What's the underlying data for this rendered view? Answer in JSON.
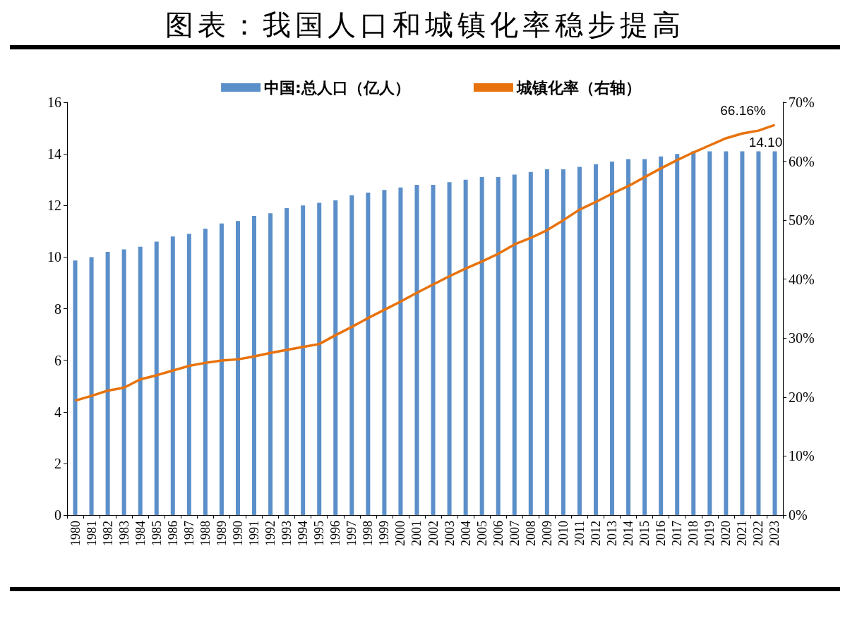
{
  "chart_data": {
    "type": "bar",
    "title": "图表：我国人口和城镇化率稳步提高",
    "categories": [
      "1980",
      "1981",
      "1982",
      "1983",
      "1984",
      "1985",
      "1986",
      "1987",
      "1988",
      "1989",
      "1990",
      "1991",
      "1992",
      "1993",
      "1994",
      "1995",
      "1996",
      "1997",
      "1998",
      "1999",
      "2000",
      "2001",
      "2002",
      "2003",
      "2004",
      "2005",
      "2006",
      "2007",
      "2008",
      "2009",
      "2010",
      "2011",
      "2012",
      "2013",
      "2014",
      "2015",
      "2016",
      "2017",
      "2018",
      "2019",
      "2020",
      "2021",
      "2022",
      "2023"
    ],
    "series": [
      {
        "name": "中国:总人口（亿人）",
        "color": "#5b8fc9",
        "values": [
          9.87,
          10.0,
          10.2,
          10.3,
          10.4,
          10.6,
          10.8,
          10.9,
          11.1,
          11.3,
          11.4,
          11.6,
          11.7,
          11.9,
          12.0,
          12.1,
          12.2,
          12.4,
          12.5,
          12.6,
          12.7,
          12.8,
          12.8,
          12.9,
          13.0,
          13.1,
          13.1,
          13.2,
          13.3,
          13.4,
          13.4,
          13.5,
          13.6,
          13.7,
          13.8,
          13.8,
          13.9,
          14.0,
          14.1,
          14.1,
          14.1,
          14.1,
          14.1,
          14.1
        ],
        "value_labels": [
          null,
          null,
          null,
          null,
          null,
          null,
          null,
          null,
          null,
          null,
          null,
          null,
          null,
          null,
          null,
          null,
          null,
          null,
          null,
          null,
          null,
          null,
          null,
          null,
          null,
          null,
          null,
          null,
          null,
          null,
          null,
          null,
          null,
          null,
          null,
          null,
          null,
          null,
          null,
          null,
          null,
          null,
          null,
          "14.10"
        ]
      },
      {
        "name": "城镇化率（右轴）",
        "type": "line",
        "axis": "y2",
        "color": "#e8720c",
        "values": [
          19.4,
          20.2,
          21.1,
          21.6,
          23.0,
          23.7,
          24.5,
          25.3,
          25.8,
          26.2,
          26.4,
          26.9,
          27.5,
          28.0,
          28.5,
          29.0,
          30.5,
          31.9,
          33.4,
          34.8,
          36.2,
          37.7,
          39.1,
          40.5,
          41.8,
          43.0,
          44.3,
          45.9,
          47.0,
          48.3,
          50.0,
          51.8,
          53.1,
          54.5,
          55.8,
          57.3,
          58.8,
          60.2,
          61.5,
          62.7,
          63.9,
          64.7,
          65.2,
          66.16
        ],
        "value_labels": [
          null,
          null,
          null,
          null,
          null,
          null,
          null,
          null,
          null,
          null,
          null,
          null,
          null,
          null,
          null,
          null,
          null,
          null,
          null,
          null,
          null,
          null,
          null,
          null,
          null,
          null,
          null,
          null,
          null,
          null,
          null,
          null,
          null,
          null,
          null,
          null,
          null,
          null,
          null,
          null,
          null,
          null,
          null,
          "66.16%"
        ]
      }
    ],
    "ylim": [
      0,
      16
    ],
    "yticks": [
      0,
      2,
      4,
      6,
      8,
      10,
      12,
      14,
      16
    ],
    "y2lim": [
      0,
      70
    ],
    "y2ticks": [
      {
        "value": 0,
        "label": "0%"
      },
      {
        "value": 10,
        "label": "10%"
      },
      {
        "value": 20,
        "label": "20%"
      },
      {
        "value": 30,
        "label": "30%"
      },
      {
        "value": 40,
        "label": "40%"
      },
      {
        "value": 50,
        "label": "50%"
      },
      {
        "value": 60,
        "label": "60%"
      },
      {
        "value": 70,
        "label": "70%"
      }
    ],
    "grid": false,
    "legend": "top",
    "marker": "none",
    "line_style": "solid"
  }
}
